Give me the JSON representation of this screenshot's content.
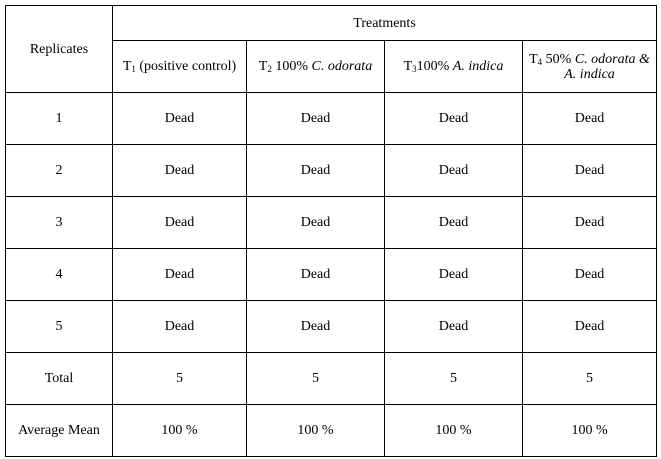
{
  "table": {
    "treatments_label": "Treatments",
    "replicates_label": "Replicates",
    "headers": [
      {
        "prefix": "T",
        "sub": "1",
        "text": " (positive control)",
        "italic": ""
      },
      {
        "prefix": "T",
        "sub": "2",
        "text": " 100% ",
        "italic": "C. odorata"
      },
      {
        "prefix": "T",
        "sub": "3",
        "text": "100% ",
        "italic": "A. indica"
      },
      {
        "prefix": "T",
        "sub": "4",
        "text": " 50% ",
        "italic": "C. odorata & A. indica"
      }
    ],
    "rows": [
      {
        "label": "1",
        "cells": [
          "Dead",
          "Dead",
          "Dead",
          "Dead"
        ]
      },
      {
        "label": "2",
        "cells": [
          "Dead",
          "Dead",
          "Dead",
          "Dead"
        ]
      },
      {
        "label": "3",
        "cells": [
          "Dead",
          "Dead",
          "Dead",
          "Dead"
        ]
      },
      {
        "label": "4",
        "cells": [
          "Dead",
          "Dead",
          "Dead",
          "Dead"
        ]
      },
      {
        "label": "5",
        "cells": [
          "Dead",
          "Dead",
          "Dead",
          "Dead"
        ]
      },
      {
        "label": "Total",
        "cells": [
          "5",
          "5",
          "5",
          "5"
        ]
      },
      {
        "label": "Average Mean",
        "cells": [
          "100 %",
          "100 %",
          "100 %",
          "100 %"
        ]
      }
    ]
  }
}
